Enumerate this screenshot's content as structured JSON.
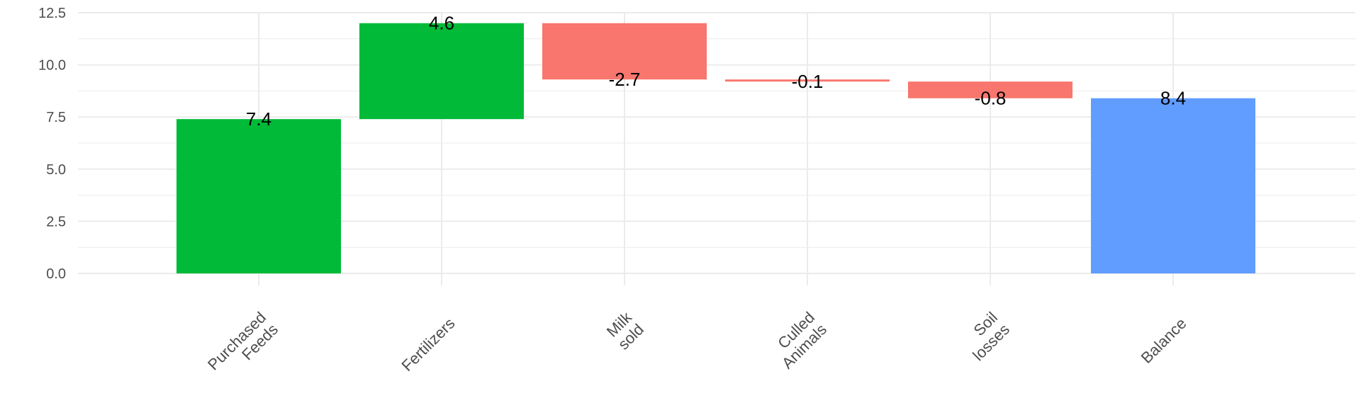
{
  "chart_data": {
    "type": "bar",
    "subtype": "waterfall",
    "categories": [
      [
        "Purchased",
        "Feeds"
      ],
      [
        "Fertilizers"
      ],
      [
        "Milk",
        "sold"
      ],
      [
        "Culled",
        "Animals"
      ],
      [
        "Soil",
        "losses"
      ],
      [
        "Balance"
      ]
    ],
    "values": [
      7.4,
      4.6,
      -2.7,
      -0.1,
      -0.8,
      8.4
    ],
    "value_labels": [
      "7.4",
      "4.6",
      "-2.7",
      "-0.1",
      "-0.8",
      "8.4"
    ],
    "bar_kinds": [
      "increase",
      "increase",
      "decrease",
      "decrease",
      "decrease",
      "total"
    ],
    "colors": {
      "increase": "#00BA38",
      "decrease": "#F8766D",
      "total": "#619CFF",
      "grid": "#ebebeb"
    },
    "ylim": [
      0,
      12.5
    ],
    "yticks": [
      0.0,
      2.5,
      5.0,
      7.5,
      10.0,
      12.5
    ],
    "ytick_labels": [
      "0.0",
      "2.5",
      "5.0",
      "7.5",
      "10.0",
      "12.5"
    ],
    "grid": true,
    "legend": "none",
    "xlabel": "",
    "ylabel": "",
    "title": ""
  }
}
